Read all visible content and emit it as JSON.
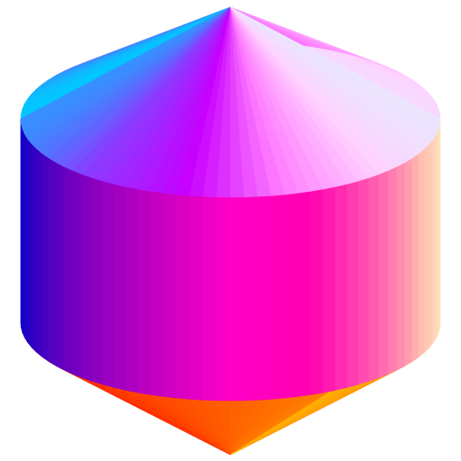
{
  "scene": {
    "background": "#ffffff",
    "object": "cylinder-with-cone-cap",
    "colors": {
      "top_cone": [
        "#00c8ff",
        "#8a3cff",
        "#c800ff",
        "#ff7dff",
        "#ffd0ff",
        "#e0f0ff"
      ],
      "side_band": [
        "#0000cc",
        "#3a00c0",
        "#8000c0",
        "#c000c0",
        "#ff00c8",
        "#ff00b0",
        "#ff60b0",
        "#ffc0b0",
        "#ffe8c0"
      ],
      "bottom_cone": [
        "#ff0000",
        "#ff4000",
        "#ff8000",
        "#ffb000"
      ]
    }
  }
}
